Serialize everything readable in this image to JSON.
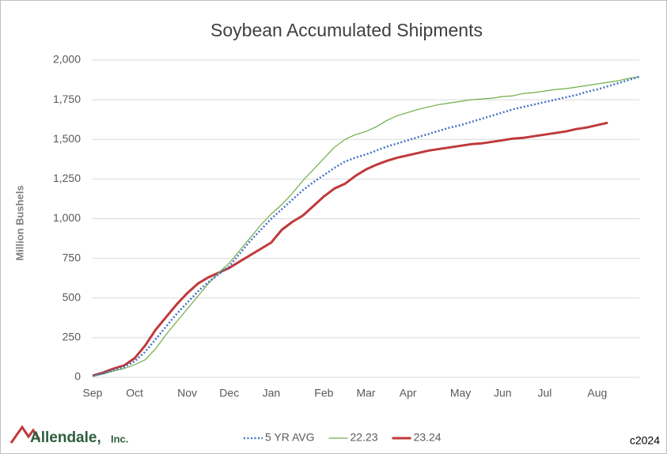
{
  "chart_data": {
    "type": "line",
    "title": "Soybean Accumulated Shipments",
    "y_label": "Million Bushels",
    "categories": [
      "Sep",
      null,
      null,
      null,
      "Oct",
      null,
      null,
      null,
      null,
      "Nov",
      null,
      null,
      null,
      "Dec",
      null,
      null,
      null,
      "Jan",
      null,
      null,
      null,
      null,
      "Feb",
      null,
      null,
      null,
      "Mar",
      null,
      null,
      null,
      "Apr",
      null,
      null,
      null,
      null,
      "May",
      null,
      null,
      null,
      "Jun",
      null,
      null,
      null,
      "Jul",
      null,
      null,
      null,
      null,
      "Aug",
      null,
      null,
      null,
      null
    ],
    "series": [
      {
        "name": "5 YR AVG",
        "color": "#4472c4",
        "style": "dotted",
        "values": [
          10,
          25,
          45,
          65,
          100,
          160,
          240,
          320,
          400,
          470,
          540,
          600,
          650,
          700,
          780,
          860,
          930,
          1000,
          1060,
          1120,
          1180,
          1230,
          1275,
          1320,
          1360,
          1385,
          1405,
          1430,
          1455,
          1475,
          1495,
          1515,
          1535,
          1555,
          1575,
          1590,
          1610,
          1630,
          1650,
          1670,
          1690,
          1705,
          1720,
          1735,
          1750,
          1765,
          1780,
          1800,
          1815,
          1835,
          1855,
          1875,
          1895
        ]
      },
      {
        "name": "22.23",
        "color": "#70ad47",
        "style": "thin",
        "values": [
          5,
          20,
          40,
          55,
          80,
          110,
          180,
          270,
          350,
          430,
          510,
          590,
          660,
          720,
          800,
          880,
          960,
          1030,
          1090,
          1160,
          1240,
          1310,
          1380,
          1450,
          1500,
          1530,
          1550,
          1580,
          1620,
          1650,
          1670,
          1690,
          1705,
          1720,
          1730,
          1740,
          1750,
          1755,
          1760,
          1770,
          1775,
          1790,
          1795,
          1805,
          1815,
          1820,
          1830,
          1840,
          1850,
          1860,
          1870,
          1885,
          1895
        ]
      },
      {
        "name": "23.24",
        "color": "#c0393b",
        "style": "thick",
        "values": [
          10,
          30,
          55,
          75,
          120,
          200,
          300,
          380,
          460,
          530,
          590,
          630,
          660,
          690,
          730,
          770,
          810,
          850,
          930,
          980,
          1020,
          1080,
          1140,
          1190,
          1220,
          1270,
          1310,
          1340,
          1365,
          1385,
          1400,
          1415,
          1430,
          1440,
          1450,
          1460,
          1470,
          1475,
          1485,
          1495,
          1505,
          1510,
          1520,
          1530,
          1540,
          1550,
          1565,
          1575,
          1590,
          1605,
          null,
          null,
          null
        ]
      }
    ],
    "ylim": [
      0,
      2000
    ],
    "yticks": [
      0,
      {
        "value": 250,
        "label": "250"
      },
      {
        "value": 500,
        "label": "500"
      },
      {
        "value": 750,
        "label": "750"
      },
      {
        "value": 1000,
        "label": "1,000"
      },
      {
        "value": 1250,
        "label": "1,250"
      },
      {
        "value": 1500,
        "label": "1,500"
      },
      {
        "value": 1750,
        "label": "1,750"
      },
      {
        "value": 2000,
        "label": "2,000"
      }
    ],
    "grid": true,
    "legend": "bottom",
    "logo": "Allendale,",
    "logo_suffix": "Inc.",
    "copyright": "c2024"
  }
}
